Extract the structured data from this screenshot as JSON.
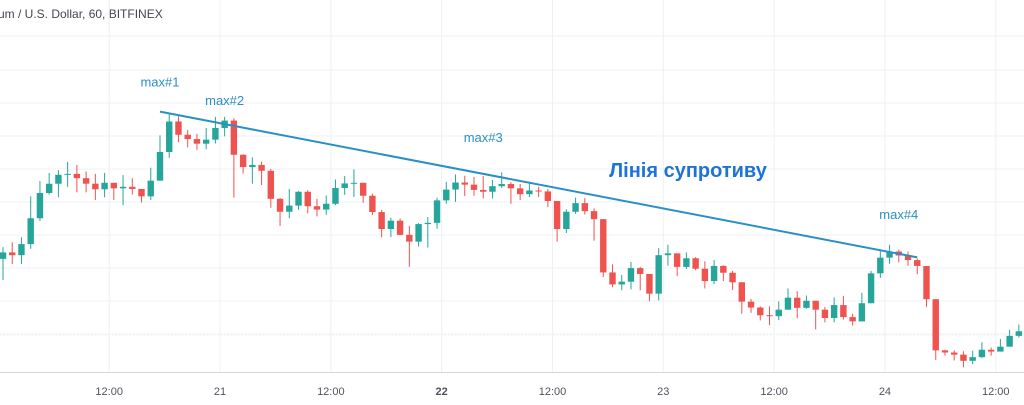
{
  "chart_data": {
    "type": "candlestick",
    "title": "um / U.S. Dollar, 60, BITFINEX",
    "x_ticks": [
      {
        "label": "12:00",
        "index": 11.5,
        "bold": false
      },
      {
        "label": "21",
        "index": 23.5,
        "bold": false
      },
      {
        "label": "12:00",
        "index": 35.5,
        "bold": false
      },
      {
        "label": "22",
        "index": 47.5,
        "bold": true
      },
      {
        "label": "12:00",
        "index": 59.5,
        "bold": false
      },
      {
        "label": "23",
        "index": 71.5,
        "bold": false
      },
      {
        "label": "12:00",
        "index": 83.5,
        "bold": false
      },
      {
        "label": "24",
        "index": 95.5,
        "bold": false
      },
      {
        "label": "12:00",
        "index": 107.5,
        "bold": false
      }
    ],
    "price_range": [
      0,
      100
    ],
    "reference_price": 19.2,
    "candles": [
      [
        44.0,
        46.1,
        47.8,
        37.1
      ],
      [
        46.1,
        45.2,
        49.4,
        42.3
      ],
      [
        45.2,
        48.8,
        51.0,
        42.3
      ],
      [
        48.8,
        57.2,
        64.3,
        47.3
      ],
      [
        57.2,
        65.4,
        69.3,
        56.3
      ],
      [
        65.4,
        68.4,
        71.9,
        64.9
      ],
      [
        68.4,
        71.3,
        72.8,
        64.0
      ],
      [
        71.3,
        71.6,
        75.5,
        67.4
      ],
      [
        71.6,
        70.2,
        74.5,
        65.6
      ],
      [
        70.2,
        68.4,
        72.4,
        65.6
      ],
      [
        68.4,
        66.6,
        71.6,
        63.1
      ],
      [
        66.6,
        68.7,
        71.9,
        64.0
      ],
      [
        68.7,
        66.9,
        68.7,
        63.1
      ],
      [
        66.9,
        67.4,
        71.2,
        61.4
      ],
      [
        67.4,
        66.7,
        70.2,
        64.9
      ],
      [
        66.7,
        64.3,
        66.7,
        62.3
      ],
      [
        64.3,
        69.4,
        73.6,
        63.1
      ],
      [
        69.4,
        78.7,
        84.1,
        69.4
      ],
      [
        78.7,
        88.6,
        90.9,
        76.8
      ],
      [
        88.6,
        84.3,
        90.3,
        81.9
      ],
      [
        84.3,
        82.9,
        85.9,
        80.2
      ],
      [
        82.9,
        81.4,
        84.6,
        79.4
      ],
      [
        81.4,
        82.7,
        86.5,
        79.6
      ],
      [
        82.7,
        86.5,
        90.1,
        81.5
      ],
      [
        86.5,
        88.9,
        90.1,
        83.8
      ],
      [
        88.9,
        77.8,
        89.7,
        63.9
      ],
      [
        77.8,
        73.8,
        78.0,
        71.7
      ],
      [
        73.8,
        74.5,
        77.0,
        68.4
      ],
      [
        74.5,
        72.6,
        75.6,
        68.0
      ],
      [
        72.6,
        63.5,
        73.2,
        60.6
      ],
      [
        63.5,
        59.3,
        63.8,
        54.7
      ],
      [
        59.3,
        61.3,
        66.7,
        57.2
      ],
      [
        61.3,
        65.8,
        66.0,
        59.9
      ],
      [
        65.8,
        61.1,
        66.3,
        58.8
      ],
      [
        61.1,
        60.0,
        63.5,
        57.8
      ],
      [
        60.0,
        61.9,
        64.6,
        58.3
      ],
      [
        61.9,
        67.0,
        69.8,
        61.5
      ],
      [
        67.0,
        68.5,
        70.9,
        64.8
      ],
      [
        68.5,
        68.7,
        73.1,
        64.1
      ],
      [
        68.7,
        64.5,
        68.7,
        62.2
      ],
      [
        64.5,
        59.2,
        65.2,
        58.2
      ],
      [
        59.2,
        53.7,
        59.9,
        51.0
      ],
      [
        53.7,
        56.4,
        57.4,
        51.1
      ],
      [
        56.4,
        51.8,
        57.1,
        51.6
      ],
      [
        51.8,
        49.6,
        54.7,
        41.4
      ],
      [
        49.6,
        55.3,
        55.6,
        48.0
      ],
      [
        55.3,
        55.7,
        57.6,
        47.7
      ],
      [
        55.7,
        63.0,
        63.9,
        53.8
      ],
      [
        63.0,
        66.5,
        69.0,
        61.9
      ],
      [
        66.5,
        68.8,
        71.4,
        62.5
      ],
      [
        68.8,
        68.1,
        71.0,
        64.4
      ],
      [
        68.1,
        66.4,
        70.6,
        64.5
      ],
      [
        66.4,
        65.8,
        70.9,
        63.6
      ],
      [
        65.8,
        67.6,
        69.6,
        63.6
      ],
      [
        67.6,
        68.3,
        72.1,
        67.0
      ],
      [
        68.3,
        66.9,
        68.9,
        61.9
      ],
      [
        66.9,
        65.0,
        68.3,
        63.1
      ],
      [
        65.0,
        66.2,
        69.1,
        64.1
      ],
      [
        66.2,
        65.9,
        67.4,
        64.1
      ],
      [
        65.9,
        62.8,
        66.7,
        60.8
      ],
      [
        62.8,
        53.7,
        62.8,
        49.6
      ],
      [
        53.7,
        59.3,
        60.1,
        52.4
      ],
      [
        59.3,
        62.1,
        63.9,
        58.6
      ],
      [
        62.1,
        59.5,
        63.7,
        58.4
      ],
      [
        59.5,
        56.9,
        60.4,
        49.9
      ],
      [
        56.9,
        39.6,
        56.9,
        38.1
      ],
      [
        39.6,
        35.7,
        42.2,
        34.8
      ],
      [
        35.7,
        36.6,
        38.8,
        33.8
      ],
      [
        36.6,
        41.0,
        43.0,
        34.1
      ],
      [
        41.0,
        39.1,
        41.4,
        33.8
      ],
      [
        39.1,
        32.7,
        39.1,
        30.2
      ],
      [
        32.7,
        45.2,
        47.5,
        30.5
      ],
      [
        45.2,
        45.8,
        48.6,
        41.8
      ],
      [
        45.8,
        41.4,
        45.8,
        38.4
      ],
      [
        41.4,
        44.2,
        46.1,
        40.7
      ],
      [
        44.2,
        40.8,
        44.6,
        40.3
      ],
      [
        40.8,
        36.8,
        43.2,
        34.4
      ],
      [
        36.8,
        41.7,
        43.6,
        35.8
      ],
      [
        41.7,
        39.5,
        41.9,
        36.8
      ],
      [
        39.5,
        36.4,
        40.1,
        33.9
      ],
      [
        36.4,
        30.1,
        36.4,
        26.2
      ],
      [
        30.1,
        28.2,
        31.0,
        26.5
      ],
      [
        28.2,
        25.7,
        28.6,
        24.0
      ],
      [
        25.7,
        25.4,
        28.6,
        22.5
      ],
      [
        25.4,
        27.5,
        30.2,
        24.1
      ],
      [
        27.5,
        31.4,
        34.4,
        27.5
      ],
      [
        31.4,
        28.1,
        33.5,
        24.7
      ],
      [
        28.1,
        30.4,
        32.1,
        27.8
      ],
      [
        30.4,
        27.5,
        30.4,
        21.1
      ],
      [
        27.5,
        24.8,
        28.4,
        23.4
      ],
      [
        24.8,
        29.0,
        31.5,
        23.4
      ],
      [
        29.0,
        25.1,
        32.0,
        24.3
      ],
      [
        25.1,
        23.7,
        26.2,
        22.3
      ],
      [
        23.7,
        29.6,
        33.0,
        23.7
      ],
      [
        29.6,
        39.3,
        40.1,
        29.6
      ],
      [
        39.3,
        44.4,
        46.9,
        37.8
      ],
      [
        44.4,
        46.4,
        48.6,
        42.4
      ],
      [
        46.4,
        45.1,
        47.0,
        42.9
      ],
      [
        45.1,
        43.6,
        46.4,
        41.8
      ],
      [
        43.6,
        41.7,
        44.1,
        39.0
      ],
      [
        41.7,
        30.9,
        41.7,
        28.4
      ],
      [
        30.9,
        14.3,
        30.9,
        11.2
      ],
      [
        14.3,
        13.6,
        14.5,
        12.6
      ],
      [
        13.6,
        12.9,
        14.3,
        11.0
      ],
      [
        12.9,
        10.9,
        14.0,
        8.8
      ],
      [
        10.9,
        12.1,
        14.2,
        9.8
      ],
      [
        12.1,
        14.5,
        16.9,
        11.8
      ],
      [
        14.5,
        13.9,
        15.2,
        12.6
      ],
      [
        13.9,
        15.5,
        18.0,
        13.9
      ],
      [
        15.5,
        19.0,
        21.0,
        15.5
      ],
      [
        19.0,
        20.5,
        22.7,
        18.5
      ],
      [
        20.5,
        19.6,
        21.9,
        18.0
      ],
      [
        19.6,
        17.5,
        20.3,
        16.1
      ],
      [
        17.5,
        18.1,
        20.3,
        16.6
      ],
      [
        18.1,
        20.5,
        22.2,
        17.8
      ]
    ],
    "annotations": [
      {
        "text": "max#1",
        "index": 17,
        "price": 100
      },
      {
        "text": "max#2",
        "index": 24,
        "price": 94
      },
      {
        "text": "max#3",
        "index": 52,
        "price": 82
      },
      {
        "text": "max#4",
        "index": 97,
        "price": 57
      }
    ],
    "resistance_line": {
      "label": "Лінія супротиву",
      "start": {
        "index": 17,
        "price": 91.8
      },
      "end": {
        "index": 99,
        "price": 44.5
      }
    },
    "colors": {
      "up": "#26a69a",
      "down": "#ef5350",
      "line": "#2a8fc6",
      "reference": "#b85050",
      "label": "#1e73d8"
    }
  }
}
